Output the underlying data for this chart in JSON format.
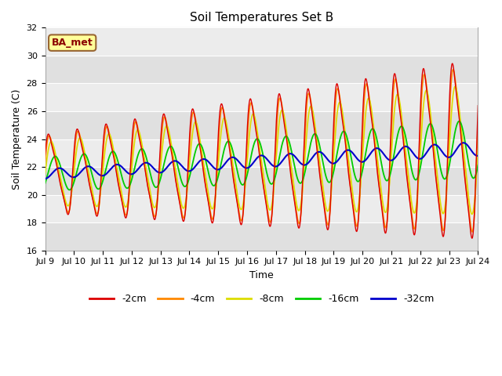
{
  "title": "Soil Temperatures Set B",
  "xlabel": "Time",
  "ylabel": "Soil Temperature (C)",
  "ylim": [
    16,
    32
  ],
  "xlim": [
    0,
    15
  ],
  "xtick_labels": [
    "Jul 9",
    "Jul 10",
    "Jul 11",
    "Jul 12",
    "Jul 13",
    "Jul 14",
    "Jul 15",
    "Jul 16",
    "Jul 17",
    "Jul 18",
    "Jul 19",
    "Jul 20",
    "Jul 21",
    "Jul 22",
    "Jul 23",
    "Jul 24"
  ],
  "legend_label": "BA_met",
  "line_colors": {
    "-2cm": "#dd0000",
    "-4cm": "#ff8800",
    "-8cm": "#dddd00",
    "-16cm": "#00cc00",
    "-32cm": "#0000cc"
  },
  "ytick_vals": [
    16,
    18,
    20,
    22,
    24,
    26,
    28,
    30,
    32
  ],
  "band_colors": [
    "#e0e0e0",
    "#ececec"
  ],
  "title_fontsize": 11,
  "tick_fontsize": 8,
  "label_fontsize": 9
}
